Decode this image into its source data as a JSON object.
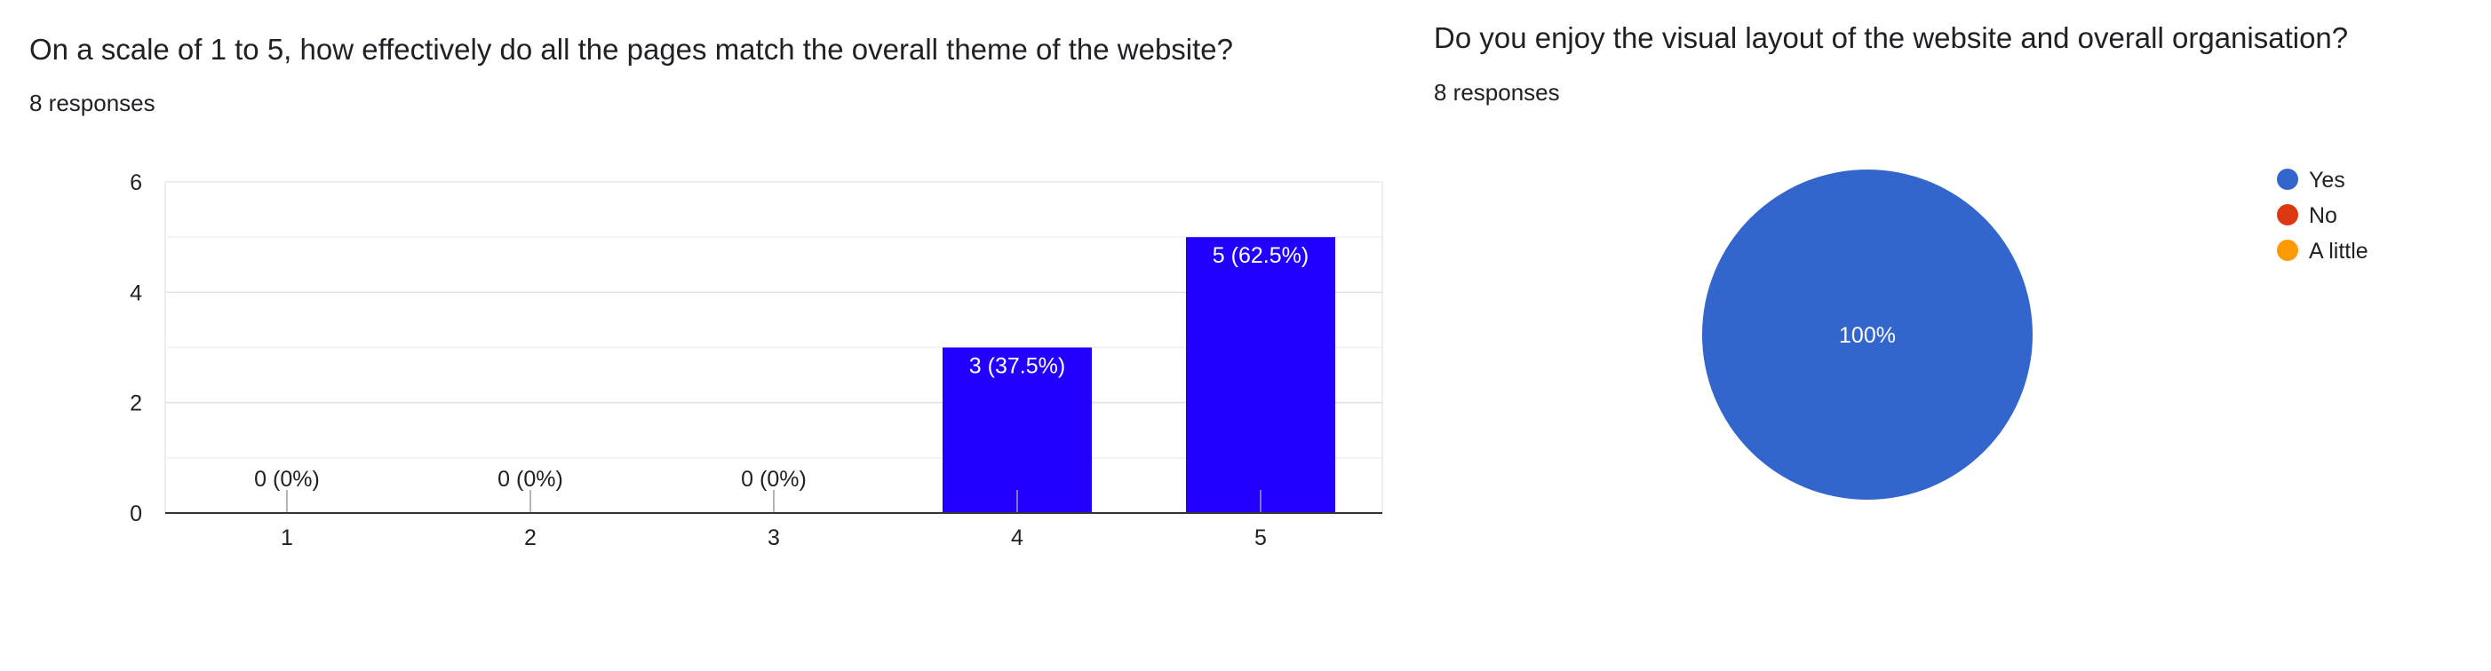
{
  "charts": [
    {
      "title": "On a scale of 1 to 5, how effectively do all the pages match the overall theme of the website?",
      "responses": "8 responses"
    },
    {
      "title": "Do you enjoy the visual layout of the website and overall organisation?",
      "responses": "8 responses"
    }
  ],
  "chart_data": [
    {
      "type": "bar",
      "title": "On a scale of 1 to 5, how effectively do all the pages match the overall theme of the website?",
      "categories": [
        "1",
        "2",
        "3",
        "4",
        "5"
      ],
      "values": [
        0,
        0,
        0,
        3,
        5
      ],
      "data_labels": [
        "0 (0%)",
        "0 (0%)",
        "0 (0%)",
        "3 (37.5%)",
        "5 (62.5%)"
      ],
      "ylim": [
        0,
        6
      ],
      "yticks": [
        "0",
        "2",
        "4",
        "6"
      ],
      "grid": true,
      "bar_color": "#2200ff"
    },
    {
      "type": "pie",
      "title": "Do you enjoy the visual layout of the website and overall organisation?",
      "categories": [
        "Yes",
        "No",
        "A little"
      ],
      "values": [
        8,
        0,
        0
      ],
      "slice_labels": [
        "100%",
        "",
        ""
      ],
      "colors": [
        "#3366cc",
        "#dc3912",
        "#ff9900"
      ],
      "legend_position": "top-right"
    }
  ]
}
